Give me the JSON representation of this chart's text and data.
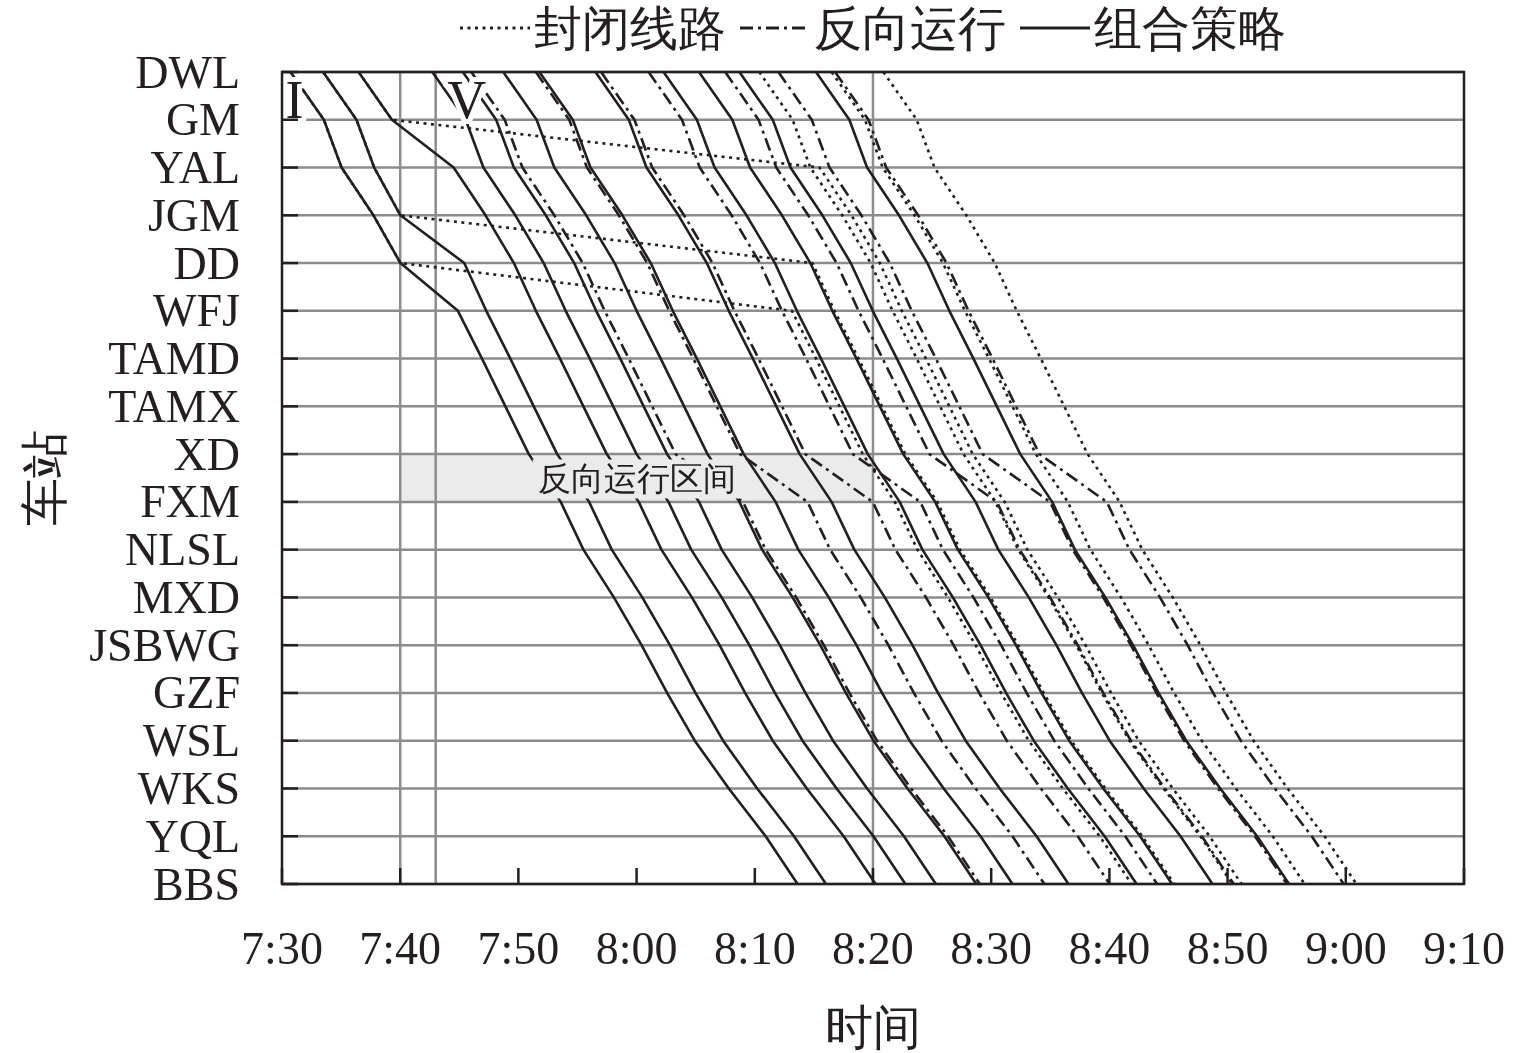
{
  "chart_data": {
    "type": "line",
    "orientation": "horizontal",
    "xlabel": "时间",
    "ylabel": "车站",
    "categories": [
      "DWL",
      "GM",
      "YAL",
      "JGM",
      "DD",
      "WFJ",
      "TAMD",
      "TAMX",
      "XD",
      "FXM",
      "NLSL",
      "MXD",
      "JSBWG",
      "GZF",
      "WSL",
      "WKS",
      "YQL",
      "BBS"
    ],
    "xlim": [
      7.5,
      9.1667
    ],
    "xticks": [
      {
        "value": 7.5,
        "label": "7:30"
      },
      {
        "value": 7.6667,
        "label": "7:40"
      },
      {
        "value": 7.8333,
        "label": "7:50"
      },
      {
        "value": 8,
        "label": "8:00"
      },
      {
        "value": 8.1667,
        "label": "8:10"
      },
      {
        "value": 8.3333,
        "label": "8:20"
      },
      {
        "value": 8.5,
        "label": "8:30"
      },
      {
        "value": 8.6667,
        "label": "8:40"
      },
      {
        "value": 8.8333,
        "label": "8:50"
      },
      {
        "value": 9,
        "label": "9:00"
      },
      {
        "value": 9.1667,
        "label": "9:10"
      }
    ],
    "grid": "y",
    "legend": "top",
    "series": [
      {
        "name": "封闭线路",
        "color": "#231f20",
        "line_style": "dotted",
        "values": [
          7.512,
          7.559,
          7.584,
          7.629,
          7.667,
          8.219,
          8.253,
          8.286,
          8.319,
          8.364,
          8.396,
          8.439,
          8.478,
          8.514,
          8.553,
          8.601,
          8.653,
          8.698
        ]
      },
      {
        "color": "#231f20",
        "line_style": "dotted",
        "values": [
          7.558,
          7.605,
          7.63,
          7.667,
          8.248,
          8.279,
          8.313,
          8.346,
          8.379,
          8.424,
          8.456,
          8.499,
          8.538,
          8.574,
          8.613,
          8.661,
          8.713,
          8.758
        ]
      },
      {
        "color": "#231f20",
        "line_style": "dotted",
        "values": [
          7.608,
          7.655,
          8.258,
          8.303,
          8.343,
          8.374,
          8.408,
          8.441,
          8.474,
          8.519,
          8.551,
          8.594,
          8.633,
          8.669,
          8.708,
          8.756,
          8.808,
          8.853
        ]
      },
      {
        "color": "#231f20",
        "line_style": "dotted",
        "values": [
          8.173,
          8.22,
          8.245,
          8.29,
          8.33,
          8.361,
          8.395,
          8.428,
          8.461,
          8.506,
          8.538,
          8.581,
          8.62,
          8.656,
          8.695,
          8.743,
          8.795,
          8.84
        ]
      },
      {
        "color": "#231f20",
        "line_style": "dotted",
        "values": [
          8.275,
          8.322,
          8.347,
          8.392,
          8.432,
          8.463,
          8.497,
          8.53,
          8.563,
          8.608,
          8.64,
          8.683,
          8.722,
          8.758,
          8.797,
          8.845,
          8.897,
          8.942
        ]
      },
      {
        "color": "#231f20",
        "line_style": "dotted",
        "values": [
          8.348,
          8.395,
          8.42,
          8.465,
          8.505,
          8.536,
          8.57,
          8.603,
          8.636,
          8.681,
          8.713,
          8.756,
          8.795,
          8.831,
          8.87,
          8.918,
          8.97,
          9.015
        ]
      },
      {
        "name": "反向运行",
        "color": "#231f20",
        "line_style": "dashed",
        "values": [
          7.767,
          7.814,
          7.839,
          7.884,
          7.924,
          7.955,
          7.989,
          8.022,
          8.055,
          8.15,
          8.182,
          8.225,
          8.264,
          8.3,
          8.339,
          8.387,
          8.439,
          8.484
        ]
      },
      {
        "color": "#231f20",
        "line_style": "dashed",
        "values": [
          7.858,
          7.905,
          7.93,
          7.975,
          8.015,
          8.046,
          8.08,
          8.113,
          8.146,
          8.241,
          8.273,
          8.316,
          8.355,
          8.391,
          8.43,
          8.478,
          8.53,
          8.575
        ]
      },
      {
        "color": "#231f20",
        "line_style": "dashed",
        "values": [
          7.95,
          7.997,
          8.022,
          8.067,
          8.107,
          8.138,
          8.172,
          8.205,
          8.238,
          8.333,
          8.365,
          8.408,
          8.447,
          8.483,
          8.522,
          8.57,
          8.622,
          8.667
        ]
      },
      {
        "color": "#231f20",
        "line_style": "dashed",
        "values": [
          8.017,
          8.064,
          8.089,
          8.134,
          8.174,
          8.205,
          8.239,
          8.272,
          8.305,
          8.4,
          8.432,
          8.475,
          8.514,
          8.55,
          8.589,
          8.637,
          8.689,
          8.734
        ]
      },
      {
        "color": "#231f20",
        "line_style": "dashed",
        "values": [
          8.125,
          8.172,
          8.197,
          8.242,
          8.282,
          8.313,
          8.347,
          8.38,
          8.413,
          8.508,
          8.54,
          8.583,
          8.622,
          8.658,
          8.697,
          8.745,
          8.797,
          8.842
        ]
      },
      {
        "color": "#231f20",
        "line_style": "dashed",
        "values": [
          8.2,
          8.247,
          8.272,
          8.317,
          8.357,
          8.388,
          8.422,
          8.455,
          8.488,
          8.583,
          8.615,
          8.658,
          8.697,
          8.733,
          8.772,
          8.82,
          8.872,
          8.917
        ]
      },
      {
        "color": "#231f20",
        "line_style": "dashed",
        "values": [
          8.28,
          8.327,
          8.352,
          8.397,
          8.437,
          8.468,
          8.502,
          8.535,
          8.568,
          8.663,
          8.695,
          8.738,
          8.777,
          8.813,
          8.852,
          8.9,
          8.952,
          8.997
        ]
      },
      {
        "name": "组合策略",
        "color": "#231f20",
        "line_style": "solid",
        "values": [
          7.512,
          7.559,
          7.584,
          7.629,
          7.667,
          7.748,
          7.782,
          7.815,
          7.848,
          7.893,
          7.925,
          7.968,
          8.007,
          8.043,
          8.082,
          8.13,
          8.182,
          8.227
        ]
      },
      {
        "color": "#231f20",
        "line_style": "solid",
        "values": [
          7.558,
          7.605,
          7.63,
          7.667,
          7.757,
          7.788,
          7.822,
          7.855,
          7.888,
          7.933,
          7.965,
          8.008,
          8.047,
          8.083,
          8.122,
          8.17,
          8.222,
          8.267
        ]
      },
      {
        "color": "#231f20",
        "line_style": "solid",
        "values": [
          7.608,
          7.655,
          7.742,
          7.787,
          7.827,
          7.858,
          7.892,
          7.925,
          7.958,
          8.003,
          8.035,
          8.078,
          8.117,
          8.153,
          8.192,
          8.24,
          8.292,
          8.337
        ]
      },
      {
        "color": "#231f20",
        "line_style": "solid",
        "values": [
          7.712,
          7.759,
          7.784,
          7.829,
          7.869,
          7.9,
          7.934,
          7.967,
          8,
          8.045,
          8.077,
          8.12,
          8.159,
          8.195,
          8.234,
          8.282,
          8.334,
          8.379
        ]
      },
      {
        "color": "#231f20",
        "line_style": "solid",
        "values": [
          7.755,
          7.802,
          7.827,
          7.872,
          7.912,
          7.943,
          7.977,
          8.01,
          8.043,
          8.088,
          8.12,
          8.163,
          8.202,
          8.238,
          8.277,
          8.325,
          8.377,
          8.422
        ]
      },
      {
        "color": "#231f20",
        "line_style": "solid",
        "values": [
          7.812,
          7.859,
          7.884,
          7.929,
          7.969,
          8,
          8.034,
          8.067,
          8.1,
          8.145,
          8.177,
          8.22,
          8.259,
          8.295,
          8.334,
          8.382,
          8.434,
          8.479
        ]
      },
      {
        "color": "#231f20",
        "line_style": "solid",
        "values": [
          7.863,
          7.91,
          7.935,
          7.98,
          8.02,
          8.051,
          8.085,
          8.118,
          8.151,
          8.196,
          8.228,
          8.271,
          8.31,
          8.346,
          8.385,
          8.433,
          8.485,
          8.53
        ]
      },
      {
        "color": "#231f20",
        "line_style": "solid",
        "values": [
          7.942,
          7.989,
          8.014,
          8.059,
          8.099,
          8.13,
          8.164,
          8.197,
          8.23,
          8.275,
          8.307,
          8.35,
          8.389,
          8.425,
          8.464,
          8.512,
          8.564,
          8.609
        ]
      },
      {
        "color": "#231f20",
        "line_style": "solid",
        "values": [
          8.038,
          8.085,
          8.11,
          8.155,
          8.195,
          8.226,
          8.26,
          8.293,
          8.326,
          8.371,
          8.403,
          8.446,
          8.485,
          8.521,
          8.56,
          8.608,
          8.66,
          8.705
        ]
      },
      {
        "color": "#231f20",
        "line_style": "solid",
        "values": [
          8.088,
          8.135,
          8.16,
          8.205,
          8.245,
          8.276,
          8.31,
          8.343,
          8.376,
          8.421,
          8.453,
          8.496,
          8.535,
          8.571,
          8.61,
          8.658,
          8.71,
          8.755
        ]
      },
      {
        "color": "#231f20",
        "line_style": "solid",
        "values": [
          8.145,
          8.192,
          8.217,
          8.262,
          8.302,
          8.333,
          8.367,
          8.4,
          8.433,
          8.478,
          8.51,
          8.553,
          8.592,
          8.628,
          8.667,
          8.715,
          8.767,
          8.812
        ]
      },
      {
        "color": "#231f20",
        "line_style": "solid",
        "values": [
          8.253,
          8.3,
          8.325,
          8.37,
          8.41,
          8.441,
          8.475,
          8.508,
          8.541,
          8.586,
          8.618,
          8.661,
          8.7,
          8.736,
          8.775,
          8.823,
          8.875,
          8.92
        ]
      }
    ],
    "ref_lines": [
      {
        "axis": "x",
        "value": 7.6667,
        "color": "#8c8c8c"
      },
      {
        "axis": "x",
        "value": 7.7167,
        "color": "#8c8c8c"
      },
      {
        "axis": "x",
        "value": 8.3333,
        "color": "#8c8c8c"
      }
    ],
    "bands": [
      {
        "axis": "y",
        "from": "XD",
        "to": "FXM",
        "label": "反向运行区间",
        "color": "#ebebeb"
      }
    ],
    "annotations": [
      {
        "text": "I",
        "x": 7.512,
        "y": "DWL"
      },
      {
        "text": "V",
        "x": 7.755,
        "y": "DWL"
      }
    ]
  }
}
